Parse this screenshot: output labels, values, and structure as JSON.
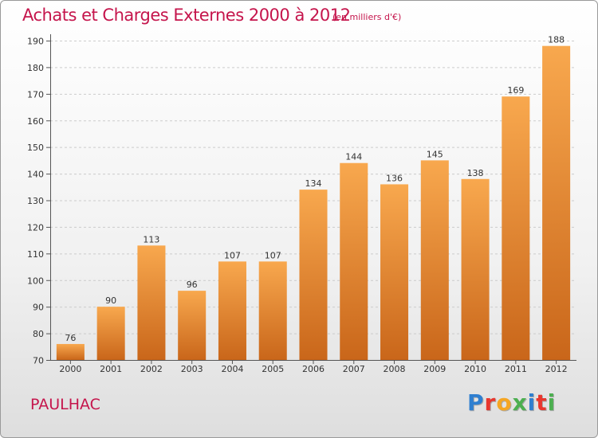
{
  "header": {
    "title": "Achats et Charges Externes 2000 à 2012",
    "subtitle": "(en milliers d'€)"
  },
  "footer": {
    "commune": "PAULHAC",
    "logo_text": "Proxiti",
    "logo_colors": [
      "#2f7fd0",
      "#e8372e",
      "#f5a623",
      "#4caf50",
      "#2f7fd0",
      "#e8372e",
      "#4caf50"
    ]
  },
  "chart_data": {
    "type": "bar",
    "categories": [
      "2000",
      "2001",
      "2002",
      "2003",
      "2004",
      "2005",
      "2006",
      "2007",
      "2008",
      "2009",
      "2010",
      "2011",
      "2012"
    ],
    "values": [
      76,
      90,
      113,
      96,
      107,
      107,
      134,
      144,
      136,
      145,
      138,
      169,
      188
    ],
    "data_labels": [
      "76",
      "90",
      "113",
      "96",
      "107",
      "107",
      "134",
      "144",
      "136",
      "145",
      "138",
      "169",
      "188"
    ],
    "ylim": [
      70,
      190
    ],
    "yticks": [
      70,
      80,
      90,
      100,
      110,
      120,
      130,
      140,
      150,
      160,
      170,
      180,
      190
    ],
    "ytick_labels": [
      "70",
      "80",
      "90",
      "100",
      "110",
      "120",
      "130",
      "140",
      "150",
      "160",
      "170",
      "180",
      "190"
    ],
    "grid": true,
    "bar_color": "#e8862e",
    "bar_color_light": "#f8a84e",
    "bar_color_dark": "#c9661a"
  }
}
